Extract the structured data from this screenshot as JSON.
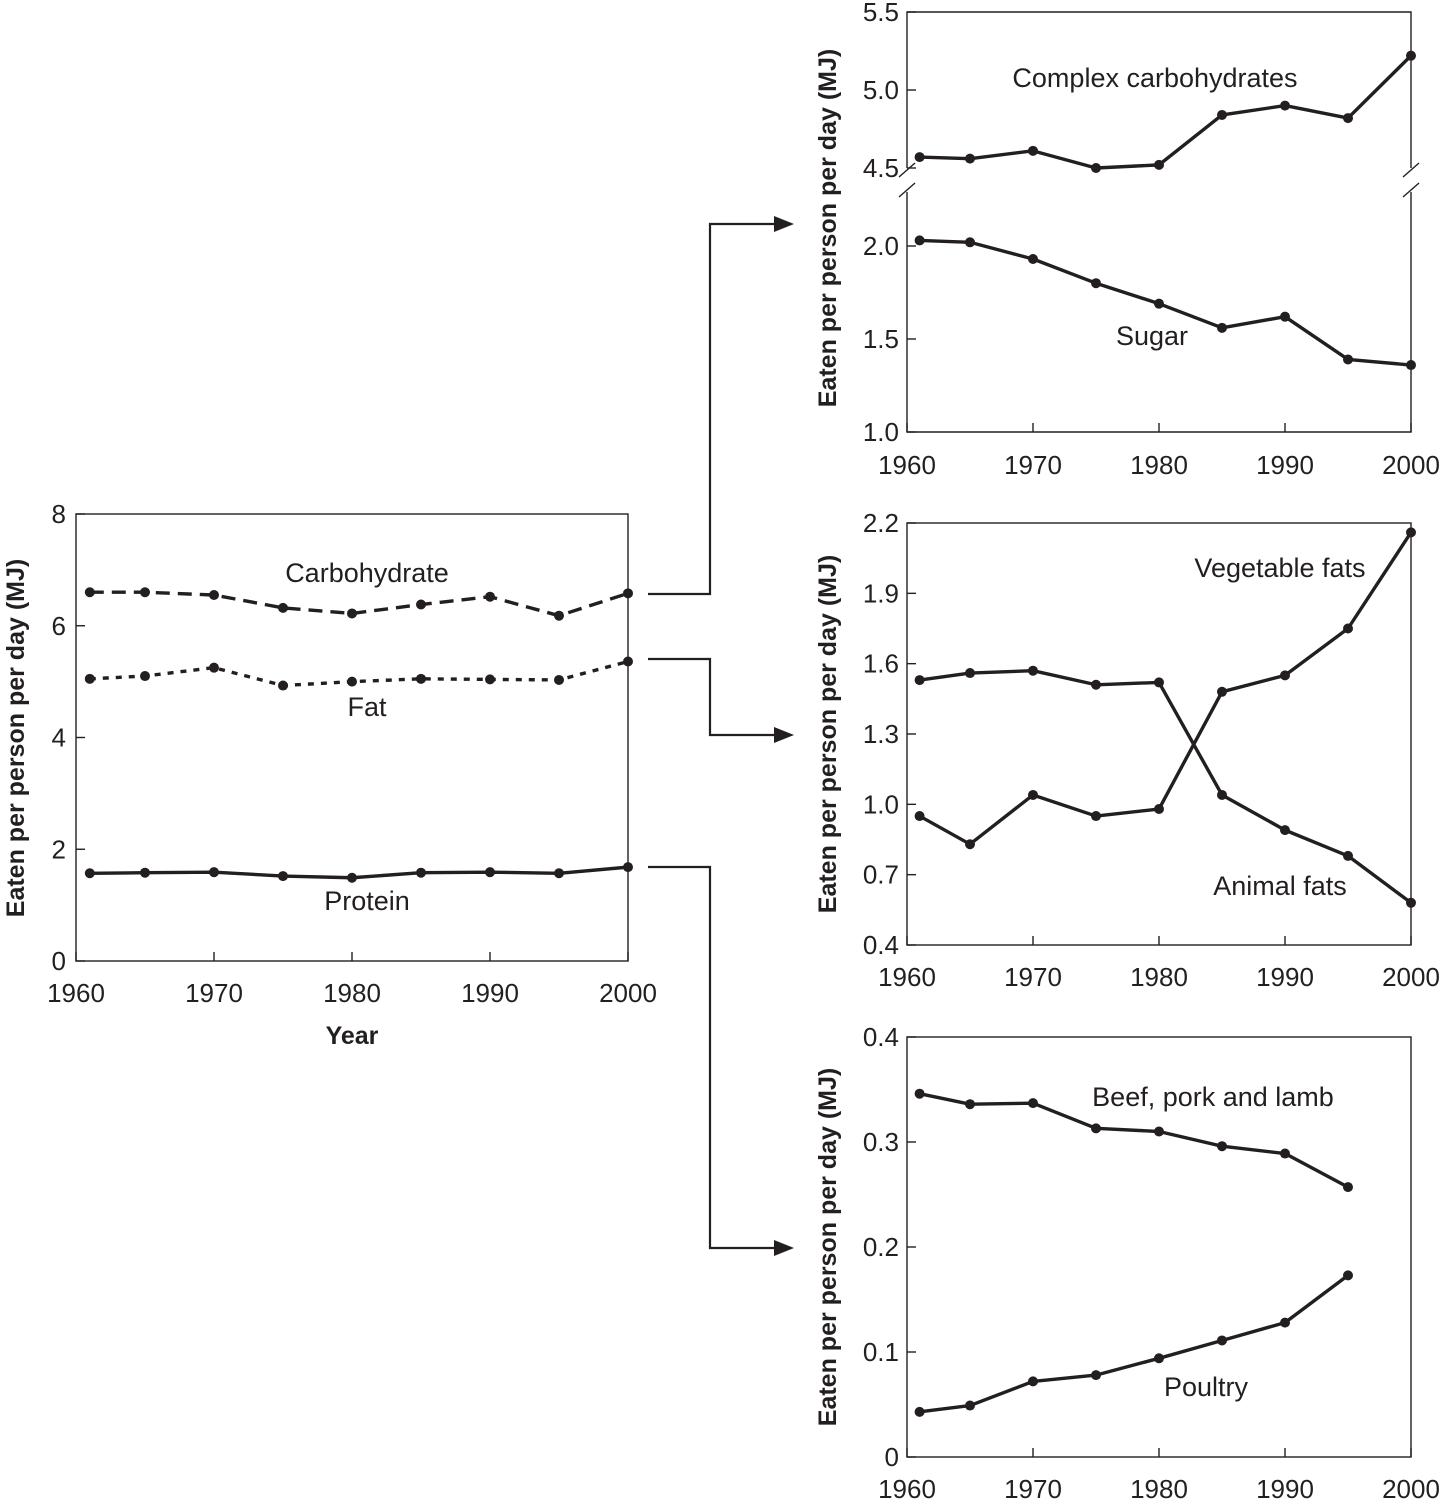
{
  "chart_data": [
    {
      "type": "line",
      "panel": "main",
      "xlabel": "Year",
      "ylabel": "Eaten per person per day (MJ)",
      "xlim": [
        1960,
        2000
      ],
      "ylim": [
        0,
        8
      ],
      "xticks": [
        1960,
        1970,
        1980,
        1990,
        2000
      ],
      "yticks": [
        0,
        2,
        4,
        6,
        8
      ],
      "grid": false,
      "series": [
        {
          "name": "Carbohydrate",
          "style": "dashed",
          "x": [
            1961,
            1965,
            1970,
            1975,
            1980,
            1985,
            1990,
            1995,
            2000
          ],
          "y": [
            6.6,
            6.6,
            6.55,
            6.32,
            6.22,
            6.38,
            6.52,
            6.18,
            6.58
          ]
        },
        {
          "name": "Fat",
          "style": "dotted",
          "x": [
            1961,
            1965,
            1970,
            1975,
            1980,
            1985,
            1990,
            1995,
            2000
          ],
          "y": [
            5.05,
            5.1,
            5.25,
            4.93,
            5.0,
            5.05,
            5.04,
            5.03,
            5.36
          ]
        },
        {
          "name": "Protein",
          "style": "solid",
          "x": [
            1961,
            1965,
            1970,
            1975,
            1980,
            1985,
            1990,
            1995,
            2000
          ],
          "y": [
            1.57,
            1.58,
            1.59,
            1.52,
            1.49,
            1.58,
            1.59,
            1.57,
            1.68
          ]
        }
      ]
    },
    {
      "type": "line",
      "panel": "carbohydrate-breakdown",
      "ylabel": "Eaten per person per day (MJ)",
      "xlim": [
        1960,
        2000
      ],
      "xticks": [
        1960,
        1970,
        1980,
        1990,
        2000
      ],
      "broken_axis": true,
      "ylim_upper": [
        4.5,
        5.5
      ],
      "yticks_upper": [
        "4.5",
        "5.0",
        "5.5"
      ],
      "ylim_lower": [
        1.0,
        2.2
      ],
      "yticks_lower": [
        "1.0",
        "1.5",
        "2.0"
      ],
      "grid": false,
      "series": [
        {
          "name": "Complex carbohydrates",
          "axis": "upper",
          "x": [
            1961,
            1965,
            1970,
            1975,
            1980,
            1985,
            1990,
            1995,
            2000
          ],
          "y": [
            4.57,
            4.56,
            4.61,
            4.5,
            4.52,
            4.84,
            4.9,
            4.82,
            5.22
          ]
        },
        {
          "name": "Sugar",
          "axis": "lower",
          "x": [
            1961,
            1965,
            1970,
            1975,
            1980,
            1985,
            1990,
            1995,
            2000
          ],
          "y": [
            2.03,
            2.02,
            1.93,
            1.8,
            1.69,
            1.56,
            1.62,
            1.39,
            1.36
          ]
        }
      ]
    },
    {
      "type": "line",
      "panel": "fat-breakdown",
      "ylabel": "Eaten per person per day (MJ)",
      "xlim": [
        1960,
        2000
      ],
      "ylim": [
        0.4,
        2.2
      ],
      "xticks": [
        1960,
        1970,
        1980,
        1990,
        2000
      ],
      "yticks": [
        "0.4",
        "0.7",
        "1.0",
        "1.3",
        "1.6",
        "1.9",
        "2.2"
      ],
      "grid": false,
      "series": [
        {
          "name": "Vegetable fats",
          "x": [
            1961,
            1965,
            1970,
            1975,
            1980,
            1985,
            1990,
            1995,
            2000
          ],
          "y": [
            0.95,
            0.83,
            1.04,
            0.95,
            0.98,
            1.48,
            1.55,
            1.75,
            2.16
          ]
        },
        {
          "name": "Animal fats",
          "x": [
            1961,
            1965,
            1970,
            1975,
            1980,
            1985,
            1990,
            1995,
            2000
          ],
          "y": [
            1.53,
            1.56,
            1.57,
            1.51,
            1.52,
            1.04,
            0.89,
            0.78,
            0.58
          ]
        }
      ]
    },
    {
      "type": "line",
      "panel": "protein-breakdown",
      "ylabel": "Eaten per person per day (MJ)",
      "xlim": [
        1960,
        2000
      ],
      "ylim": [
        0,
        0.4
      ],
      "xticks": [
        1960,
        1970,
        1980,
        1990,
        2000
      ],
      "yticks": [
        "0",
        "0.1",
        "0.2",
        "0.3",
        "0.4"
      ],
      "grid": false,
      "series": [
        {
          "name": "Beef, pork and lamb",
          "x": [
            1961,
            1965,
            1970,
            1975,
            1980,
            1985,
            1990,
            1995
          ],
          "y": [
            0.346,
            0.336,
            0.337,
            0.313,
            0.31,
            0.296,
            0.289,
            0.257
          ]
        },
        {
          "name": "Poultry",
          "x": [
            1961,
            1965,
            1970,
            1975,
            1980,
            1985,
            1990,
            1995
          ],
          "y": [
            0.043,
            0.049,
            0.072,
            0.078,
            0.094,
            0.111,
            0.128,
            0.173
          ]
        }
      ]
    }
  ]
}
